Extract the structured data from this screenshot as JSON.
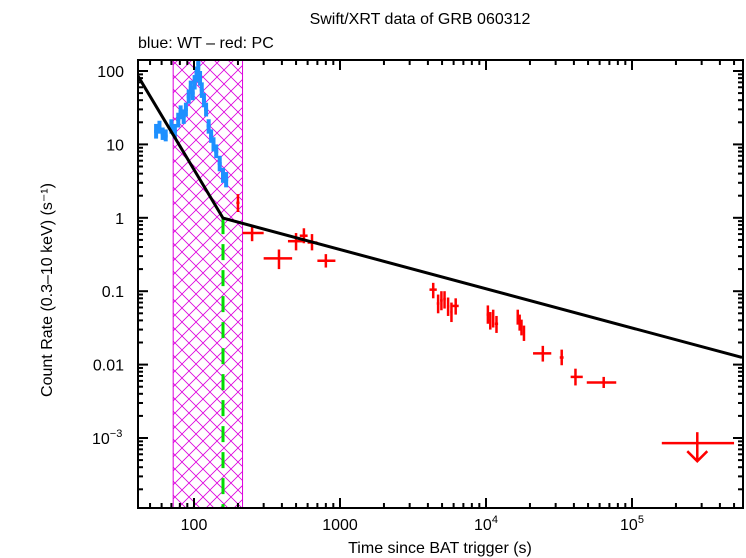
{
  "chart_data": {
    "type": "scatter",
    "title": "Swift/XRT data of GRB 060312",
    "subtitle": "blue: WT – red: PC",
    "xlabel": "Time since BAT trigger (s)",
    "ylabel": "Count Rate (0.3–10 keV) (s⁻¹)",
    "xscale": "log",
    "yscale": "log",
    "xlim": [
      41,
      570000
    ],
    "ylim": [
      0.00011,
      160
    ],
    "xticks": [
      {
        "value": 100,
        "label": "100"
      },
      {
        "value": 1000,
        "label": "1000"
      },
      {
        "value": 10000,
        "label": "10",
        "sup": "4"
      },
      {
        "value": 100000,
        "label": "10",
        "sup": "5"
      }
    ],
    "yticks": [
      {
        "value": 100,
        "label": "100"
      },
      {
        "value": 10,
        "label": "10"
      },
      {
        "value": 1,
        "label": "1"
      },
      {
        "value": 0.1,
        "label": "0.1"
      },
      {
        "value": 0.01,
        "label": "0.01"
      },
      {
        "value": 0.001,
        "label": "10",
        "sup": "−3"
      }
    ],
    "colors": {
      "wt": "#1e90ff",
      "pc": "#ff0000",
      "model": "#000000",
      "hatch": "#dd00dd",
      "break": "#00dd00"
    },
    "shaded_region": {
      "x0": 72,
      "x1": 215,
      "label": "flare interval"
    },
    "break_time": 158,
    "model": {
      "name": "broken power law",
      "points": [
        [
          41.4,
          85
        ],
        [
          158,
          0.99
        ],
        [
          567000,
          0.0125
        ]
      ]
    },
    "series": [
      {
        "name": "WT",
        "color": "#1e90ff",
        "points": [
          {
            "t": 55,
            "r": 15,
            "lo": 12,
            "hi": 19
          },
          {
            "t": 58,
            "r": 17,
            "lo": 14,
            "hi": 21
          },
          {
            "t": 61,
            "r": 14,
            "lo": 11.5,
            "hi": 17
          },
          {
            "t": 64,
            "r": 13,
            "lo": 11,
            "hi": 16
          },
          {
            "t": 70,
            "r": 18,
            "lo": 14,
            "hi": 22
          },
          {
            "t": 74,
            "r": 15,
            "lo": 12,
            "hi": 19
          },
          {
            "t": 78,
            "r": 22,
            "lo": 17,
            "hi": 27
          },
          {
            "t": 81,
            "r": 28,
            "lo": 22,
            "hi": 34
          },
          {
            "t": 85,
            "r": 24,
            "lo": 19,
            "hi": 30
          },
          {
            "t": 88,
            "r": 30,
            "lo": 24,
            "hi": 37
          },
          {
            "t": 92,
            "r": 45,
            "lo": 36,
            "hi": 56
          },
          {
            "t": 95,
            "r": 60,
            "lo": 48,
            "hi": 74
          },
          {
            "t": 98,
            "r": 50,
            "lo": 40,
            "hi": 62
          },
          {
            "t": 101,
            "r": 70,
            "lo": 56,
            "hi": 88
          },
          {
            "t": 104,
            "r": 90,
            "lo": 70,
            "hi": 115
          },
          {
            "t": 107,
            "r": 125,
            "lo": 95,
            "hi": 160
          },
          {
            "t": 110,
            "r": 80,
            "lo": 63,
            "hi": 100
          },
          {
            "t": 113,
            "r": 55,
            "lo": 43,
            "hi": 70
          },
          {
            "t": 117,
            "r": 40,
            "lo": 32,
            "hi": 50
          },
          {
            "t": 121,
            "r": 30,
            "lo": 24,
            "hi": 37
          },
          {
            "t": 126,
            "r": 18,
            "lo": 14,
            "hi": 22
          },
          {
            "t": 131,
            "r": 13,
            "lo": 10.5,
            "hi": 16
          },
          {
            "t": 136,
            "r": 10,
            "lo": 8,
            "hi": 12.5
          },
          {
            "t": 142,
            "r": 8,
            "lo": 6.5,
            "hi": 10
          },
          {
            "t": 150,
            "r": 5.5,
            "lo": 4.3,
            "hi": 7
          },
          {
            "t": 158,
            "r": 3.8,
            "lo": 3,
            "hi": 4.8
          },
          {
            "t": 166,
            "r": 3.3,
            "lo": 2.6,
            "hi": 4.2
          }
        ]
      },
      {
        "name": "PC",
        "color": "#ff0000",
        "points": [
          {
            "t": 200,
            "r": 1.6,
            "tlo": 195,
            "thi": 205,
            "lo": 1.2,
            "hi": 2.1
          },
          {
            "t": 250,
            "r": 0.62,
            "tlo": 215,
            "thi": 300,
            "lo": 0.48,
            "hi": 0.8
          },
          {
            "t": 382,
            "r": 0.28,
            "tlo": 300,
            "thi": 470,
            "lo": 0.2,
            "hi": 0.37
          },
          {
            "t": 500,
            "r": 0.48,
            "tlo": 440,
            "thi": 560,
            "lo": 0.36,
            "hi": 0.62
          },
          {
            "t": 566,
            "r": 0.57,
            "tlo": 530,
            "thi": 600,
            "lo": 0.45,
            "hi": 0.72
          },
          {
            "t": 643,
            "r": 0.46,
            "tlo": 600,
            "thi": 700,
            "lo": 0.36,
            "hi": 0.6
          },
          {
            "t": 800,
            "r": 0.26,
            "tlo": 700,
            "thi": 930,
            "lo": 0.21,
            "hi": 0.32
          },
          {
            "t": 4350,
            "r": 0.105,
            "tlo": 4100,
            "thi": 4600,
            "lo": 0.08,
            "hi": 0.13
          },
          {
            "t": 4700,
            "r": 0.068,
            "tlo": 4600,
            "thi": 4800,
            "lo": 0.05,
            "hi": 0.09
          },
          {
            "t": 4950,
            "r": 0.075,
            "tlo": 4850,
            "thi": 5050,
            "lo": 0.055,
            "hi": 0.1
          },
          {
            "t": 5200,
            "r": 0.078,
            "tlo": 5100,
            "thi": 5300,
            "lo": 0.058,
            "hi": 0.1
          },
          {
            "t": 5500,
            "r": 0.062,
            "tlo": 5400,
            "thi": 5600,
            "lo": 0.046,
            "hi": 0.082
          },
          {
            "t": 5800,
            "r": 0.052,
            "tlo": 5700,
            "thi": 5900,
            "lo": 0.038,
            "hi": 0.07
          },
          {
            "t": 6200,
            "r": 0.063,
            "tlo": 5900,
            "thi": 6500,
            "lo": 0.048,
            "hi": 0.08
          },
          {
            "t": 10300,
            "r": 0.048,
            "tlo": 10100,
            "thi": 10500,
            "lo": 0.036,
            "hi": 0.064
          },
          {
            "t": 10700,
            "r": 0.04,
            "tlo": 10500,
            "thi": 10900,
            "lo": 0.03,
            "hi": 0.052
          },
          {
            "t": 11200,
            "r": 0.043,
            "tlo": 11000,
            "thi": 11400,
            "lo": 0.032,
            "hi": 0.056
          },
          {
            "t": 11800,
            "r": 0.036,
            "tlo": 11500,
            "thi": 12100,
            "lo": 0.027,
            "hi": 0.046
          },
          {
            "t": 16500,
            "r": 0.045,
            "tlo": 16300,
            "thi": 16700,
            "lo": 0.035,
            "hi": 0.056
          },
          {
            "t": 17000,
            "r": 0.038,
            "tlo": 16800,
            "thi": 17200,
            "lo": 0.029,
            "hi": 0.048
          },
          {
            "t": 17500,
            "r": 0.032,
            "tlo": 17300,
            "thi": 17700,
            "lo": 0.025,
            "hi": 0.041
          },
          {
            "t": 18200,
            "r": 0.027,
            "tlo": 17900,
            "thi": 18500,
            "lo": 0.021,
            "hi": 0.034
          },
          {
            "t": 24500,
            "r": 0.0142,
            "tlo": 21000,
            "thi": 28000,
            "lo": 0.011,
            "hi": 0.018
          },
          {
            "t": 33000,
            "r": 0.0125,
            "tlo": 32000,
            "thi": 34000,
            "lo": 0.0098,
            "hi": 0.016
          },
          {
            "t": 41000,
            "r": 0.0068,
            "tlo": 38000,
            "thi": 46000,
            "lo": 0.0052,
            "hi": 0.0088
          },
          {
            "t": 64000,
            "r": 0.0057,
            "tlo": 49000,
            "thi": 78000,
            "lo": 0.0048,
            "hi": 0.0068
          }
        ]
      },
      {
        "name": "PC upper limit",
        "color": "#ff0000",
        "upper_limits": [
          {
            "t": 280000,
            "r": 0.00085,
            "tlo": 160000,
            "thi": 500000
          }
        ]
      }
    ]
  }
}
